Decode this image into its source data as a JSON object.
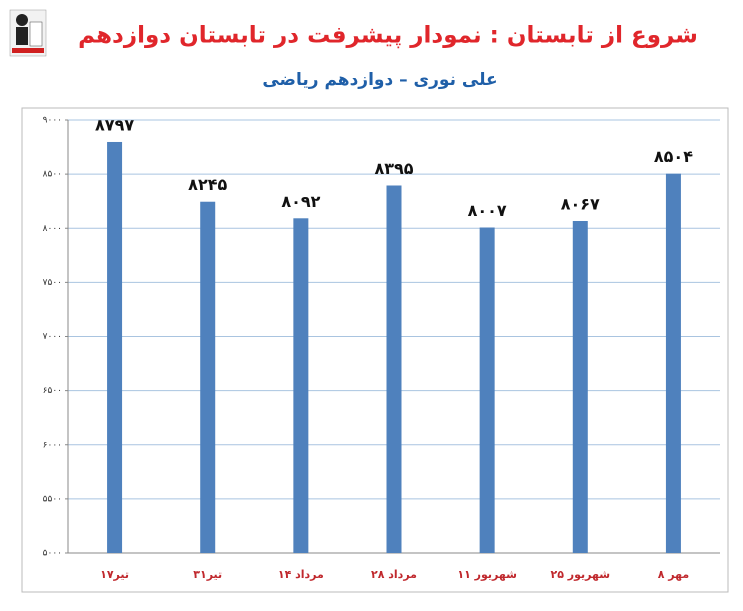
{
  "chart_data": {
    "type": "bar",
    "title": "شروع از تابستان : نمودار پیشرفت در تابستان دوازدهم",
    "subtitle": "علی نوری – دوازدهم ریاضی",
    "categories": [
      "۱۷تیر",
      "۳۱تیر",
      "۱۴ مرداد",
      "۲۸ مرداد",
      "۱۱ شهریور",
      "۲۵ شهریور",
      "۸ مهر"
    ],
    "values": [
      8797,
      8245,
      8092,
      8395,
      8007,
      8067,
      8504
    ],
    "value_labels": [
      "۸۷۹۷",
      "۸۲۴۵",
      "۸۰۹۲",
      "۸۳۹۵",
      "۸۰۰۷",
      "۸۰۶۷",
      "۸۵۰۴"
    ],
    "color": "#4f81bd",
    "ylim": [
      5000,
      9000
    ],
    "yticks": [
      {
        "value": 5000,
        "label": "۵۰۰۰"
      },
      {
        "value": 5500,
        "label": "۵۵۰۰"
      },
      {
        "value": 6000,
        "label": "۶۰۰۰"
      },
      {
        "value": 6500,
        "label": "۶۵۰۰"
      },
      {
        "value": 7000,
        "label": "۷۰۰۰"
      },
      {
        "value": 7500,
        "label": "۷۵۰۰"
      },
      {
        "value": 8000,
        "label": "۸۰۰۰"
      },
      {
        "value": 8500,
        "label": "۸۵۰۰"
      },
      {
        "value": 9000,
        "label": "۹۰۰۰"
      }
    ],
    "grid": true
  }
}
